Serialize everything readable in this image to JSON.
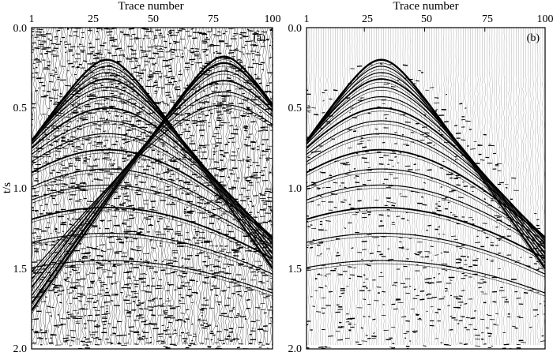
{
  "figure": {
    "ylabel": "t/s"
  },
  "chart_data": [
    {
      "type": "heatmap",
      "panel_label": "(a)",
      "xlabel": "Trace number",
      "xlim": [
        1,
        100
      ],
      "xticks": [
        1,
        25,
        50,
        75,
        100
      ],
      "ylabel": "t/s",
      "ylim": [
        0.0,
        2.0
      ],
      "yticks": [
        "0.0",
        "0.5",
        "1.0",
        "1.5",
        "2.0"
      ],
      "y_inverted": true,
      "noise_level": "high",
      "events": [
        {
          "kind": "hyperbola",
          "apex_trace": 32,
          "apex_time": 0.2
        },
        {
          "kind": "hyperbola",
          "apex_trace": 32,
          "apex_time": 0.24
        },
        {
          "kind": "hyperbola",
          "apex_trace": 32,
          "apex_time": 0.28
        },
        {
          "kind": "hyperbola",
          "apex_trace": 32,
          "apex_time": 0.32
        },
        {
          "kind": "hyperbola",
          "apex_trace": 32,
          "apex_time": 0.37
        },
        {
          "kind": "hyperbola",
          "apex_trace": 32,
          "apex_time": 0.43
        },
        {
          "kind": "hyperbola",
          "apex_trace": 32,
          "apex_time": 0.5
        },
        {
          "kind": "hyperbola",
          "apex_trace": 32,
          "apex_time": 0.58
        },
        {
          "kind": "hyperbola",
          "apex_trace": 32,
          "apex_time": 0.66
        },
        {
          "kind": "hyperbola",
          "apex_trace": 32,
          "apex_time": 0.76
        },
        {
          "kind": "hyperbola",
          "apex_trace": 32,
          "apex_time": 0.88
        },
        {
          "kind": "hyperbola",
          "apex_trace": 32,
          "apex_time": 0.98
        },
        {
          "kind": "hyperbola",
          "apex_trace": 32,
          "apex_time": 1.12
        },
        {
          "kind": "hyperbola",
          "apex_trace": 32,
          "apex_time": 1.28
        },
        {
          "kind": "hyperbola",
          "apex_trace": 32,
          "apex_time": 1.45
        },
        {
          "kind": "hyperbola",
          "apex_trace": 80,
          "apex_time": 0.18
        },
        {
          "kind": "hyperbola",
          "apex_trace": 80,
          "apex_time": 0.22
        },
        {
          "kind": "hyperbola",
          "apex_trace": 80,
          "apex_time": 0.27
        },
        {
          "kind": "hyperbola",
          "apex_trace": 80,
          "apex_time": 0.33
        },
        {
          "kind": "hyperbola",
          "apex_trace": 80,
          "apex_time": 0.4
        },
        {
          "kind": "hyperbola",
          "apex_trace": 80,
          "apex_time": 0.48
        }
      ]
    },
    {
      "type": "heatmap",
      "panel_label": "(b)",
      "xlabel": "Trace number",
      "xlim": [
        1,
        100
      ],
      "xticks": [
        1,
        25,
        50,
        75,
        100
      ],
      "ylim": [
        0.0,
        2.0
      ],
      "yticks": [
        "0.0",
        "0.5",
        "1.0",
        "1.5",
        "2.0"
      ],
      "y_inverted": true,
      "noise_level": "low",
      "events": [
        {
          "kind": "hyperbola",
          "apex_trace": 32,
          "apex_time": 0.2
        },
        {
          "kind": "hyperbola",
          "apex_trace": 32,
          "apex_time": 0.24
        },
        {
          "kind": "hyperbola",
          "apex_trace": 32,
          "apex_time": 0.28
        },
        {
          "kind": "hyperbola",
          "apex_trace": 32,
          "apex_time": 0.32
        },
        {
          "kind": "hyperbola",
          "apex_trace": 32,
          "apex_time": 0.37
        },
        {
          "kind": "hyperbola",
          "apex_trace": 32,
          "apex_time": 0.43
        },
        {
          "kind": "hyperbola",
          "apex_trace": 32,
          "apex_time": 0.5
        },
        {
          "kind": "hyperbola",
          "apex_trace": 32,
          "apex_time": 0.58
        },
        {
          "kind": "hyperbola",
          "apex_trace": 32,
          "apex_time": 0.66
        },
        {
          "kind": "hyperbola",
          "apex_trace": 32,
          "apex_time": 0.76
        },
        {
          "kind": "hyperbola",
          "apex_trace": 32,
          "apex_time": 0.88
        },
        {
          "kind": "hyperbola",
          "apex_trace": 32,
          "apex_time": 0.98
        },
        {
          "kind": "hyperbola",
          "apex_trace": 32,
          "apex_time": 1.12
        },
        {
          "kind": "hyperbola",
          "apex_trace": 32,
          "apex_time": 1.28
        },
        {
          "kind": "hyperbola",
          "apex_trace": 32,
          "apex_time": 1.45
        }
      ]
    }
  ]
}
